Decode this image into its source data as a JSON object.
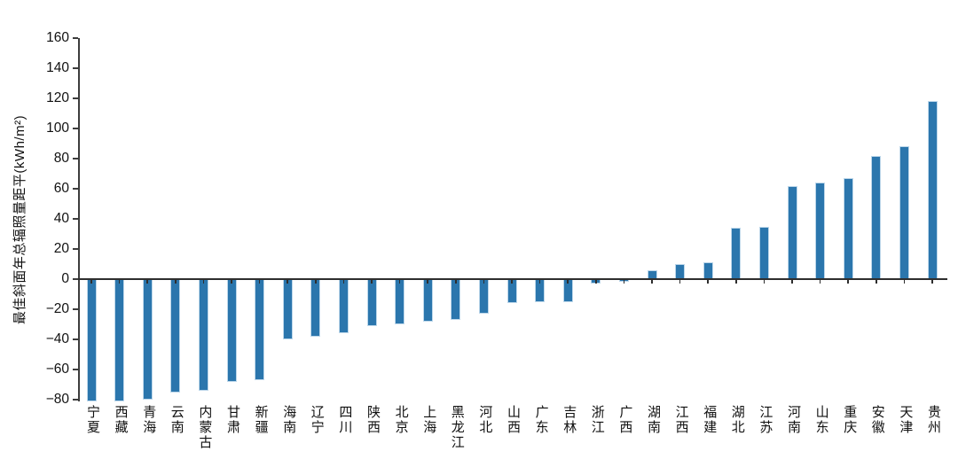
{
  "chart_data": {
    "type": "bar",
    "title": "",
    "xlabel": "",
    "ylabel": "最佳斜面年总辐照量距平(kWh/m²)",
    "categories": [
      "宁夏",
      "西藏",
      "青海",
      "云南",
      "内蒙古",
      "甘肃",
      "新疆",
      "海南",
      "辽宁",
      "四川",
      "陕西",
      "北京",
      "上海",
      "黑龙江",
      "河北",
      "山西",
      "广东",
      "吉林",
      "浙江",
      "广西",
      "湖南",
      "江西",
      "福建",
      "湖北",
      "江苏",
      "河南",
      "山东",
      "重庆",
      "安徽",
      "天津",
      "贵州"
    ],
    "values": [
      -81,
      -81,
      -80,
      -75,
      -74,
      -68,
      -67,
      -40,
      -38,
      -36,
      -31,
      -30,
      -28,
      -27,
      -23,
      -16,
      -15,
      -15,
      -3,
      -2,
      6,
      10,
      11,
      34,
      35,
      62,
      64,
      67,
      82,
      88,
      118
    ],
    "unit": "kWh/m²",
    "ylim": [
      -80,
      160
    ],
    "yticks": [
      160,
      140,
      120,
      100,
      80,
      60,
      40,
      20,
      0,
      -20,
      -40,
      -60,
      -80
    ],
    "grid": false,
    "legend": null,
    "bar_color": "#2b76ad",
    "bar_edge_color": "#bdd7ea",
    "axis_color": "#3d3d3d",
    "text_color": "#111111",
    "background_color": "#ffffff"
  }
}
